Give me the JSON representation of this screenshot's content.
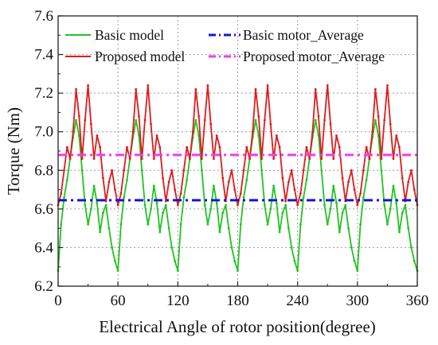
{
  "chart_data": {
    "type": "line",
    "xlabel": "Electrical Angle of rotor position(degree)",
    "ylabel": "Torque (Nm)",
    "xlim": [
      0,
      360
    ],
    "ylim": [
      6.2,
      7.6
    ],
    "x_ticks": [
      0,
      60,
      120,
      180,
      240,
      300,
      360
    ],
    "y_ticks": [
      "6.2",
      "6.4",
      "6.6",
      "6.8",
      "7.0",
      "7.2",
      "7.4",
      "7.6"
    ],
    "grid": true,
    "legend_position": "top",
    "series": [
      {
        "name": "Basic model",
        "style": "solid",
        "color": "#22c322",
        "period_deg": 60,
        "waveform_one_period": {
          "x": [
            0,
            3,
            6,
            9,
            12,
            15,
            18,
            21,
            24,
            27,
            30,
            33,
            36,
            39,
            42,
            45,
            48,
            51,
            54,
            57,
            60
          ],
          "y": [
            6.28,
            6.52,
            6.66,
            6.75,
            6.86,
            6.97,
            7.06,
            6.98,
            6.8,
            6.62,
            6.52,
            6.6,
            6.72,
            6.63,
            6.48,
            6.58,
            6.62,
            6.5,
            6.4,
            6.33,
            6.28
          ]
        }
      },
      {
        "name": "Proposed model",
        "style": "solid",
        "color": "#e01b1b",
        "period_deg": 60,
        "waveform_one_period": {
          "x": [
            0,
            3,
            6,
            9,
            12,
            15,
            18,
            21,
            24,
            27,
            30,
            33,
            36,
            39,
            42,
            45,
            48,
            51,
            54,
            57,
            60
          ],
          "y": [
            6.62,
            6.68,
            6.8,
            6.92,
            6.86,
            7.0,
            7.22,
            7.08,
            6.86,
            7.06,
            7.24,
            7.04,
            6.86,
            6.98,
            6.92,
            6.76,
            6.64,
            6.74,
            6.8,
            6.7,
            6.62
          ]
        }
      },
      {
        "name": "Basic motor_Average",
        "style": "dash-dot",
        "color": "#1515d8",
        "values": [
          6.645,
          6.645
        ]
      },
      {
        "name": "Proposed motor_Average",
        "style": "dash-dot",
        "color": "#f03df0",
        "values": [
          6.88,
          6.88
        ]
      }
    ]
  }
}
